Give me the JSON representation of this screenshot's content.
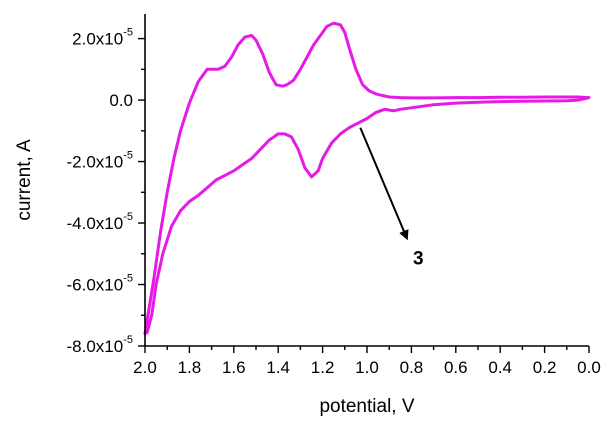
{
  "chart_data": {
    "type": "line",
    "xlabel": "potential, V",
    "ylabel": "current, A",
    "xlim": [
      2.0,
      0.0
    ],
    "ylim": [
      -8e-05,
      2.8e-05
    ],
    "x_ticks": [
      2.0,
      1.8,
      1.6,
      1.4,
      1.2,
      1.0,
      0.8,
      0.6,
      0.4,
      0.2,
      0.0
    ],
    "x_tick_labels": [
      "2.0",
      "1.8",
      "1.6",
      "1.4",
      "1.2",
      "1.0",
      "0.8",
      "0.6",
      "0.4",
      "0.2",
      "0.0"
    ],
    "y_ticks": [
      2e-05,
      0.0,
      -2e-05,
      -4e-05,
      -6e-05,
      -8e-05
    ],
    "y_tick_labels": [
      {
        "mantissa": "2.0x10",
        "exp": "-5"
      },
      {
        "mantissa": "0.0",
        "exp": ""
      },
      {
        "mantissa": "-2.0x10",
        "exp": "-5"
      },
      {
        "mantissa": "-4.0x10",
        "exp": "-5"
      },
      {
        "mantissa": "-6.0x10",
        "exp": "-5"
      },
      {
        "mantissa": "-8.0x10",
        "exp": "-5"
      }
    ],
    "grid": false,
    "series": [
      {
        "color": "#e619e6",
        "x": [
          2.0,
          1.96,
          1.93,
          1.9,
          1.87,
          1.84,
          1.8,
          1.76,
          1.72,
          1.7,
          1.67,
          1.64,
          1.61,
          1.58,
          1.55,
          1.52,
          1.5,
          1.47,
          1.44,
          1.41,
          1.38,
          1.36,
          1.33,
          1.3,
          1.27,
          1.24,
          1.21,
          1.18,
          1.15,
          1.12,
          1.1,
          1.08,
          1.05,
          1.02,
          0.99,
          0.96,
          0.93,
          0.9,
          0.85,
          0.8,
          0.7,
          0.6,
          0.5,
          0.4,
          0.3,
          0.2,
          0.1,
          0.05,
          0.0,
          0.05,
          0.1,
          0.2,
          0.3,
          0.4,
          0.5,
          0.6,
          0.7,
          0.8,
          0.85,
          0.88,
          0.92,
          0.96,
          1.0,
          1.04,
          1.08,
          1.12,
          1.16,
          1.2,
          1.22,
          1.25,
          1.28,
          1.31,
          1.34,
          1.37,
          1.4,
          1.44,
          1.48,
          1.52,
          1.56,
          1.6,
          1.64,
          1.68,
          1.72,
          1.76,
          1.8,
          1.84,
          1.88,
          1.92,
          1.95,
          1.97,
          1.99,
          2.0
        ],
        "y": [
          -7.6e-05,
          -5.8e-05,
          -4.3e-05,
          -3e-05,
          -1.9e-05,
          -1e-05,
          -1e-06,
          6e-06,
          1e-05,
          1e-05,
          1e-05,
          1.1e-05,
          1.4e-05,
          1.8e-05,
          2.05e-05,
          2.1e-05,
          1.95e-05,
          1.5e-05,
          9e-06,
          5e-06,
          4.5e-06,
          5e-06,
          6.5e-06,
          1e-05,
          1.4e-05,
          1.8e-05,
          2.1e-05,
          2.4e-05,
          2.5e-05,
          2.45e-05,
          2.2e-05,
          1.7e-05,
          1e-05,
          5e-06,
          3e-06,
          2e-06,
          1.5e-06,
          1e-06,
          8e-07,
          7e-07,
          7e-07,
          8e-07,
          8e-07,
          9e-07,
          9e-07,
          1e-06,
          1e-06,
          1e-06,
          8e-07,
          0.0,
          -2e-07,
          -3e-07,
          -4e-07,
          -5e-07,
          -7e-07,
          -1e-06,
          -1.5e-06,
          -2.5e-06,
          -3e-06,
          -3.5e-06,
          -3e-06,
          -4e-06,
          -6e-06,
          -7.5e-06,
          -9e-06,
          -1.1e-05,
          -1.4e-05,
          -1.9e-05,
          -2.3e-05,
          -2.5e-05,
          -2.2e-05,
          -1.6e-05,
          -1.2e-05,
          -1.1e-05,
          -1.1e-05,
          -1.3e-05,
          -1.6e-05,
          -1.9e-05,
          -2.1e-05,
          -2.3e-05,
          -2.45e-05,
          -2.6e-05,
          -2.85e-05,
          -3.1e-05,
          -3.3e-05,
          -3.6e-05,
          -4.1e-05,
          -5e-05,
          -6e-05,
          -7e-05,
          -7.55e-05,
          -7.6e-05
        ]
      }
    ],
    "annotations": [
      {
        "text": "3",
        "arrow_from": [
          1.03,
          -9e-06
        ],
        "arrow_to": [
          0.82,
          -4.5e-05
        ]
      }
    ]
  }
}
